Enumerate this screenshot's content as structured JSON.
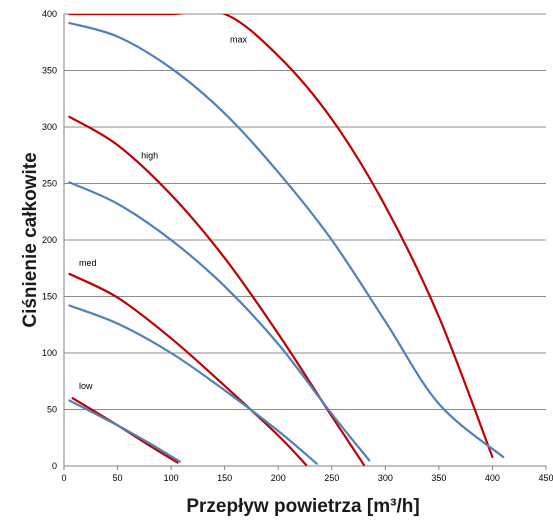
{
  "chart_data": {
    "type": "line",
    "xlabel": "Przepływ powietrza [m³/h]",
    "ylabel": "Ciśnienie całkowite",
    "xlim": [
      0,
      450
    ],
    "ylim": [
      0,
      400
    ],
    "x_ticks": [
      0,
      50,
      100,
      150,
      200,
      250,
      300,
      350,
      400,
      450
    ],
    "y_ticks": [
      0,
      50,
      100,
      150,
      200,
      250,
      300,
      350,
      400
    ],
    "grid": "horizontal",
    "colors": {
      "red": "#c00000",
      "blue": "#4f81bd"
    },
    "series": [
      {
        "color": "red",
        "x": [
          5,
          50,
          100,
          150,
          200,
          250,
          300,
          350,
          400
        ],
        "y": [
          400,
          400,
          400,
          400,
          363,
          307,
          230,
          132,
          8
        ]
      },
      {
        "color": "blue",
        "x": [
          5,
          50,
          100,
          150,
          200,
          250,
          300,
          350,
          410
        ],
        "y": [
          392,
          380,
          352,
          312,
          260,
          200,
          128,
          55,
          8
        ]
      },
      {
        "color": "red",
        "x": [
          5,
          50,
          100,
          150,
          200,
          250,
          280
        ],
        "y": [
          309,
          284,
          240,
          184,
          117,
          44,
          1
        ]
      },
      {
        "color": "blue",
        "x": [
          5,
          50,
          100,
          150,
          200,
          250,
          285
        ],
        "y": [
          251,
          232,
          200,
          159,
          108,
          46,
          5
        ]
      },
      {
        "color": "red",
        "x": [
          5,
          50,
          100,
          150,
          200,
          226
        ],
        "y": [
          170,
          149,
          113,
          71,
          27,
          1
        ]
      },
      {
        "color": "blue",
        "x": [
          5,
          50,
          100,
          150,
          200,
          236
        ],
        "y": [
          142,
          126,
          100,
          67,
          31,
          2
        ]
      },
      {
        "color": "red",
        "x": [
          8,
          50,
          80,
          106
        ],
        "y": [
          60,
          36,
          18,
          3
        ]
      },
      {
        "color": "blue",
        "x": [
          5,
          50,
          80,
          108
        ],
        "y": [
          58,
          36,
          20,
          4
        ]
      }
    ],
    "annotations": [
      {
        "text": "max",
        "x": 155,
        "y": 375
      },
      {
        "text": "high",
        "x": 72,
        "y": 272
      },
      {
        "text": "med",
        "x": 14,
        "y": 177
      },
      {
        "text": "low",
        "x": 14,
        "y": 68
      }
    ]
  }
}
